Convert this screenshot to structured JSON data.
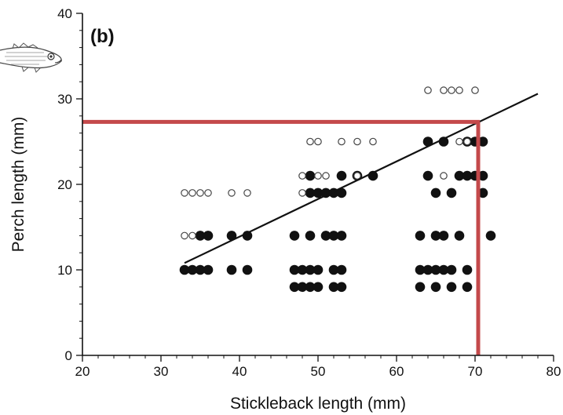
{
  "chart_data": {
    "type": "scatter",
    "panel_label": "(b)",
    "xlabel": "Stickleback length (mm)",
    "ylabel": "Perch length (mm)",
    "xlim": [
      20,
      80
    ],
    "ylim": [
      0,
      40
    ],
    "x_major_ticks": [
      20,
      30,
      40,
      50,
      60,
      70,
      80
    ],
    "y_major_ticks": [
      0,
      10,
      20,
      30,
      40
    ],
    "x_minor_step": 2,
    "y_minor_step": 2,
    "grid": false,
    "legend": "none",
    "series": [
      {
        "marker": "filled-circle",
        "points": [
          [
            33,
            10
          ],
          [
            34,
            10
          ],
          [
            35,
            10
          ],
          [
            36,
            10
          ],
          [
            39,
            10
          ],
          [
            41,
            10
          ],
          [
            35,
            14
          ],
          [
            36,
            14
          ],
          [
            39,
            14
          ],
          [
            41,
            14
          ],
          [
            47,
            8
          ],
          [
            48,
            8
          ],
          [
            49,
            8
          ],
          [
            50,
            8
          ],
          [
            52,
            8
          ],
          [
            53,
            8
          ],
          [
            47,
            10
          ],
          [
            48,
            10
          ],
          [
            49,
            10
          ],
          [
            50,
            10
          ],
          [
            52,
            10
          ],
          [
            53,
            10
          ],
          [
            47,
            14
          ],
          [
            49,
            14
          ],
          [
            51,
            14
          ],
          [
            52,
            14
          ],
          [
            53,
            14
          ],
          [
            49,
            19
          ],
          [
            50,
            19
          ],
          [
            51,
            19
          ],
          [
            52,
            19
          ],
          [
            53,
            19
          ],
          [
            49,
            21
          ],
          [
            53,
            21
          ],
          [
            55,
            21
          ],
          [
            57,
            21
          ],
          [
            63,
            8
          ],
          [
            65,
            8
          ],
          [
            67,
            8
          ],
          [
            69,
            8
          ],
          [
            63,
            10
          ],
          [
            64,
            10
          ],
          [
            65,
            10
          ],
          [
            66,
            10
          ],
          [
            67,
            10
          ],
          [
            69,
            10
          ],
          [
            63,
            14
          ],
          [
            65,
            14
          ],
          [
            66,
            14
          ],
          [
            68,
            14
          ],
          [
            72,
            14
          ],
          [
            65,
            19
          ],
          [
            67,
            19
          ],
          [
            71,
            19
          ],
          [
            64,
            21
          ],
          [
            68,
            21
          ],
          [
            69,
            21
          ],
          [
            70,
            21
          ],
          [
            71,
            21
          ],
          [
            64,
            25
          ],
          [
            66,
            25
          ],
          [
            69,
            25
          ],
          [
            70,
            25
          ],
          [
            71,
            25
          ]
        ]
      },
      {
        "marker": "open-circle",
        "points": [
          [
            33,
            19
          ],
          [
            34,
            19
          ],
          [
            35,
            19
          ],
          [
            36,
            19
          ],
          [
            39,
            19
          ],
          [
            41,
            19
          ],
          [
            33,
            14
          ],
          [
            34,
            14
          ],
          [
            48,
            19
          ],
          [
            48,
            21
          ],
          [
            50,
            21
          ],
          [
            51,
            21
          ],
          [
            49,
            25
          ],
          [
            50,
            25
          ],
          [
            53,
            25
          ],
          [
            55,
            25
          ],
          [
            57,
            25
          ],
          [
            55,
            21
          ],
          [
            66,
            21
          ],
          [
            64,
            31
          ],
          [
            66,
            31
          ],
          [
            67,
            31
          ],
          [
            68,
            31
          ],
          [
            70,
            31
          ],
          [
            68,
            25
          ],
          [
            69,
            25
          ]
        ]
      }
    ],
    "fit_line": {
      "from": [
        33,
        10.8
      ],
      "to": [
        78,
        30.6
      ],
      "color": "#111111"
    },
    "highlight_lines": {
      "color": "#c4494b",
      "horizontal": {
        "y": 27.3,
        "x_from": 20,
        "x_to": 70.4
      },
      "vertical": {
        "x": 70.4,
        "y_from": 0,
        "y_to": 27.3
      }
    }
  },
  "decor": {
    "fish_icon": "perch-fish-icon"
  }
}
